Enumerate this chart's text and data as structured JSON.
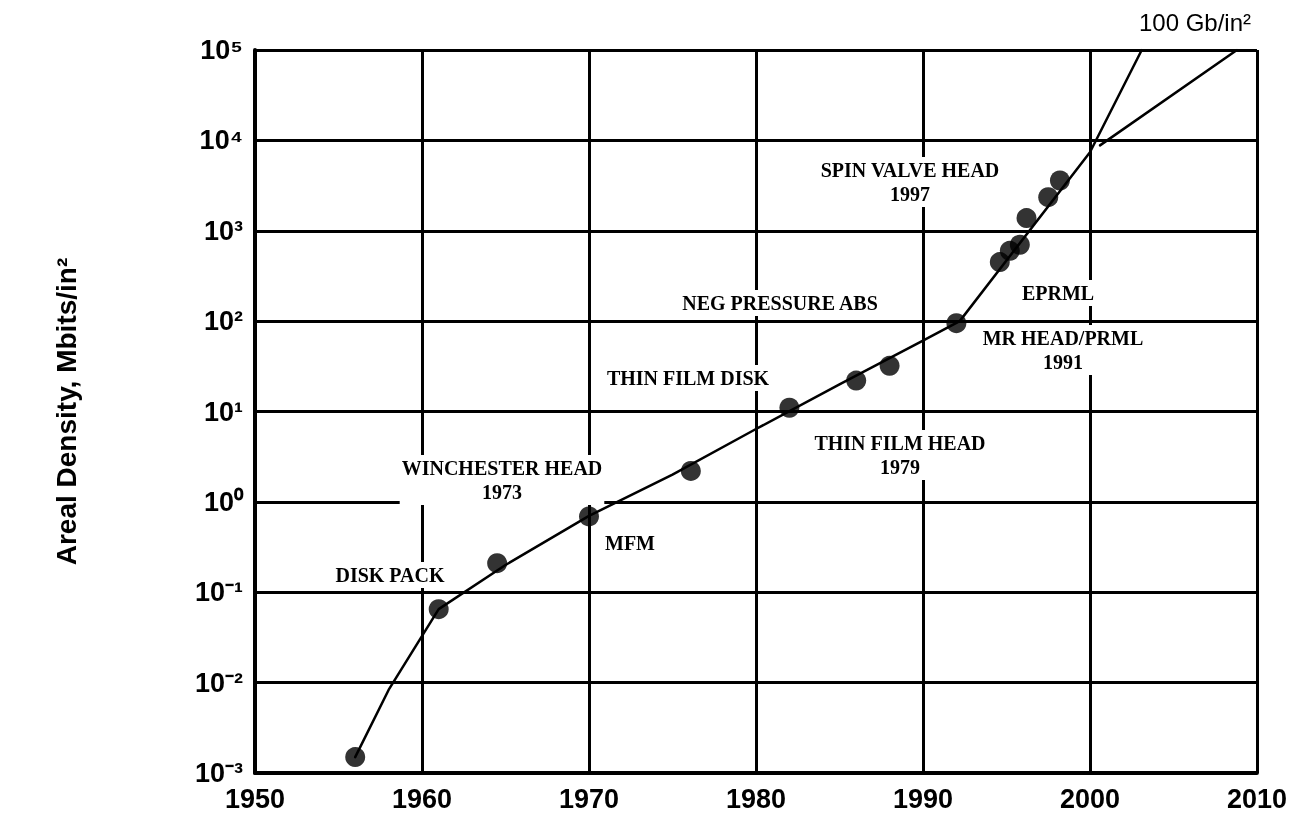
{
  "chart_data": {
    "type": "scatter",
    "ylabel": "Areal Density, Mbits/in²",
    "log": "y",
    "grid": true,
    "marker": "circle",
    "line_style": "solid",
    "xlim": [
      1950,
      2010
    ],
    "xticks": [
      1950,
      1960,
      1970,
      1980,
      1990,
      2000,
      2010
    ],
    "ylim": [
      0.001,
      100000
    ],
    "yticks": [
      {
        "value": 0.001,
        "label": "10⁻³"
      },
      {
        "value": 0.01,
        "label": "10⁻²"
      },
      {
        "value": 0.1,
        "label": "10⁻¹"
      },
      {
        "value": 1,
        "label": "10⁰"
      },
      {
        "value": 10,
        "label": "10¹"
      },
      {
        "value": 100,
        "label": "10²"
      },
      {
        "value": 1000,
        "label": "10³"
      },
      {
        "value": 10000,
        "label": "10⁴"
      },
      {
        "value": 100000,
        "label": "10⁵"
      }
    ],
    "series": [
      {
        "type": "line",
        "marker": "none",
        "color": "#000000",
        "x": [
          1956,
          1958,
          1961,
          1965,
          1970,
          1975,
          1980,
          1985,
          1990,
          1992.2,
          2000,
          2003.1
        ],
        "values": [
          0.0015,
          0.0083,
          0.065,
          0.2,
          0.7,
          2,
          6.4,
          20,
          61,
          100,
          7400,
          100000
        ]
      },
      {
        "type": "line",
        "marker": "none",
        "color": "#000000",
        "x": [
          2000.6,
          2008.8
        ],
        "values": [
          8800,
          100000
        ]
      },
      {
        "color": "#000000",
        "x": [
          1956,
          1961,
          1964.5,
          1970,
          1976.1,
          1982,
          1986,
          1988,
          1992,
          1994.6,
          1995.2,
          1995.8,
          1996.2,
          1997.5,
          1998.2
        ],
        "values": [
          0.0015,
          0.065,
          0.21,
          0.69,
          2.2,
          11,
          22,
          32,
          95,
          450,
          600,
          700,
          1380,
          2350,
          3600
        ]
      }
    ],
    "annotations": [
      "100 Gb/in²",
      "SPIN VALVE HEAD\n1997",
      "EPRML",
      "MR HEAD/PRML\n1991",
      "NEG PRESSURE ABS",
      "THIN FILM DISK",
      "THIN FILM HEAD\n1979",
      "WINCHESTER HEAD\n1973",
      "MFM",
      "DISK PACK"
    ]
  }
}
